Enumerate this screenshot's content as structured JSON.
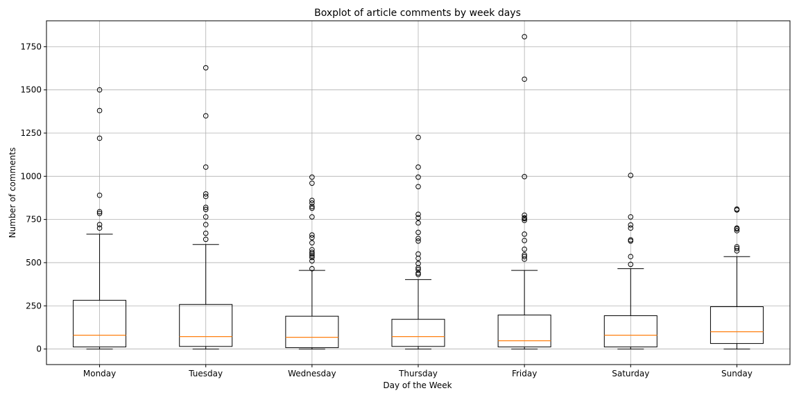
{
  "chart_data": {
    "type": "box",
    "title": "Boxplot of article comments by week days",
    "xlabel": "Day of the Week",
    "ylabel": "Number of comments",
    "ylim": [
      -90,
      1900
    ],
    "yticks": [
      0,
      250,
      500,
      750,
      1000,
      1250,
      1500,
      1750
    ],
    "grid": true,
    "categories": [
      "Monday",
      "Tuesday",
      "Wednesday",
      "Thursday",
      "Friday",
      "Saturday",
      "Sunday"
    ],
    "boxes": [
      {
        "whisker_low": 0,
        "q1": 12,
        "median": 80,
        "q3": 282,
        "whisker_high": 665,
        "outliers": [
          700,
          720,
          785,
          795,
          890,
          1220,
          1380,
          1500
        ]
      },
      {
        "whisker_low": 0,
        "q1": 15,
        "median": 72,
        "q3": 258,
        "whisker_high": 605,
        "outliers": [
          635,
          670,
          720,
          765,
          808,
          820,
          883,
          898,
          1053,
          1350,
          1628
        ]
      },
      {
        "whisker_low": 0,
        "q1": 8,
        "median": 68,
        "q3": 190,
        "whisker_high": 455,
        "outliers": [
          465,
          510,
          530,
          540,
          550,
          560,
          575,
          615,
          645,
          660,
          765,
          815,
          825,
          845,
          860,
          960,
          995
        ]
      },
      {
        "whisker_low": 0,
        "q1": 15,
        "median": 72,
        "q3": 172,
        "whisker_high": 402,
        "outliers": [
          432,
          440,
          460,
          470,
          495,
          525,
          550,
          625,
          640,
          675,
          730,
          760,
          780,
          940,
          995,
          1053,
          1225
        ]
      },
      {
        "whisker_low": 0,
        "q1": 12,
        "median": 48,
        "q3": 197,
        "whisker_high": 455,
        "outliers": [
          520,
          535,
          545,
          578,
          628,
          665,
          745,
          755,
          760,
          775,
          998,
          1562,
          1808
        ]
      },
      {
        "whisker_low": 0,
        "q1": 12,
        "median": 80,
        "q3": 193,
        "whisker_high": 465,
        "outliers": [
          490,
          535,
          625,
          632,
          700,
          718,
          765,
          1005
        ]
      },
      {
        "whisker_low": 0,
        "q1": 32,
        "median": 100,
        "q3": 245,
        "whisker_high": 535,
        "outliers": [
          568,
          582,
          592,
          685,
          695,
          700,
          805,
          810
        ]
      }
    ],
    "colors": {
      "median": "#ff7f0e",
      "box": "#000000",
      "grid": "#b0b0b0"
    }
  }
}
